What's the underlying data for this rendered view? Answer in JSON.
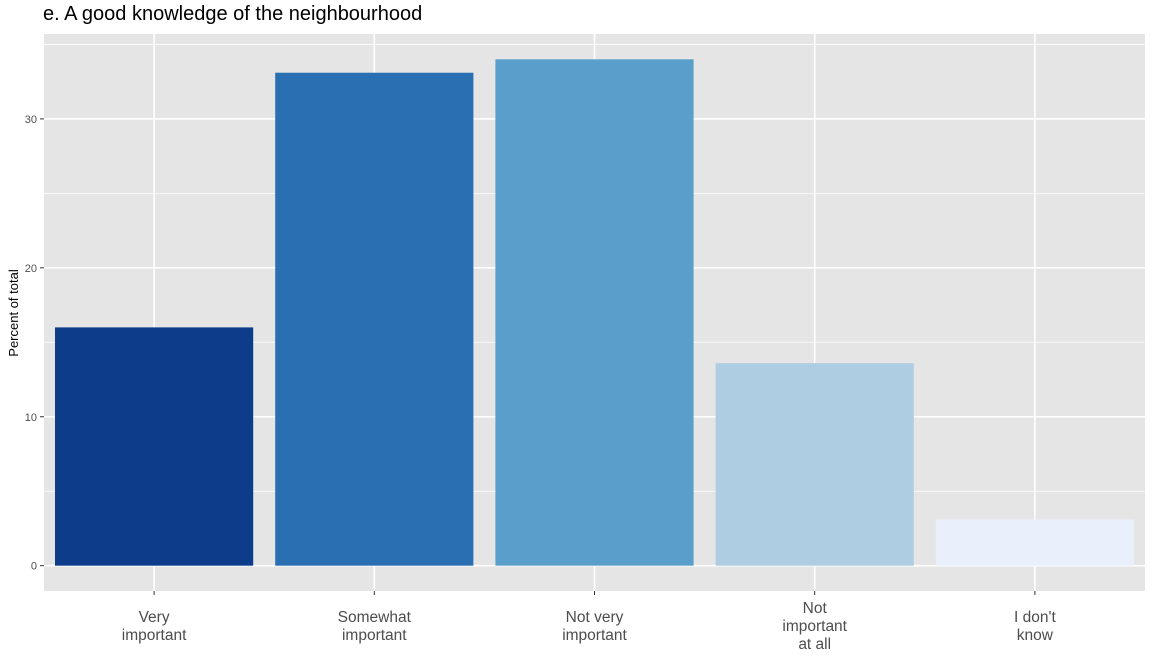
{
  "chart_data": {
    "type": "bar",
    "title": "e. A good knowledge of the neighbourhood",
    "xlabel": "",
    "ylabel": "Percent of total",
    "categories": [
      [
        "Very",
        "important"
      ],
      [
        "Somewhat",
        "important"
      ],
      [
        "Not very",
        "important"
      ],
      [
        "Not",
        "important",
        "at all"
      ],
      [
        "I don't",
        "know"
      ]
    ],
    "values": [
      16.0,
      33.1,
      34.0,
      13.6,
      3.1
    ],
    "colors": [
      "#0c3c8a",
      "#2a6fb1",
      "#5a9fcc",
      "#afcde2",
      "#eaf0fb"
    ],
    "ylim": [
      -1.7,
      35.7
    ],
    "yticks": [
      0,
      10,
      20,
      30
    ],
    "grid": true,
    "panel_background": "#e5e5e5",
    "grid_color": "#ffffff"
  }
}
